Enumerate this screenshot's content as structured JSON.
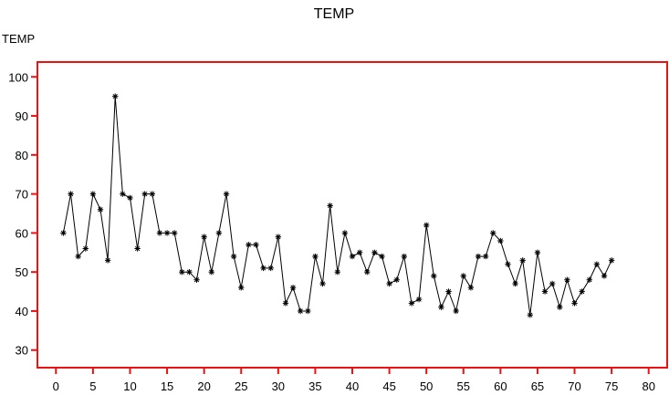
{
  "chart_data": {
    "type": "line",
    "title": "TEMP",
    "ylabel": "TEMP",
    "xlabel": "",
    "xlim": [
      -2.5,
      82.5
    ],
    "ylim": [
      25.5,
      103.8
    ],
    "x_ticks": [
      0,
      5,
      10,
      15,
      20,
      25,
      30,
      35,
      40,
      45,
      50,
      55,
      60,
      65,
      70,
      75,
      80
    ],
    "y_ticks": [
      30,
      40,
      50,
      60,
      70,
      80,
      90,
      100
    ],
    "grid": false,
    "marker": "asterisk",
    "series": [
      {
        "x": [
          1,
          2,
          3,
          4,
          5,
          6,
          7,
          8,
          9,
          10,
          11,
          12,
          13,
          14,
          15,
          16,
          17,
          18,
          19,
          20,
          21,
          22,
          23,
          24,
          25,
          26,
          27,
          28,
          29,
          30,
          31,
          32,
          33,
          34,
          35,
          36,
          37,
          38,
          39,
          40,
          41,
          42,
          43,
          44,
          45,
          46,
          47,
          48,
          49,
          50,
          51,
          52,
          53,
          54,
          55,
          56,
          57,
          58,
          59,
          60,
          61,
          62,
          63,
          64,
          65,
          66,
          67,
          68,
          69,
          70,
          71,
          72,
          73,
          74,
          75
        ],
        "values": [
          60,
          70,
          54,
          56,
          70,
          66,
          53,
          95,
          70,
          69,
          56,
          70,
          70,
          60,
          60,
          60,
          50,
          50,
          48,
          59,
          50,
          60,
          70,
          54,
          46,
          57,
          57,
          51,
          51,
          59,
          42,
          46,
          40,
          40,
          54,
          47,
          67,
          50,
          60,
          54,
          55,
          50,
          55,
          54,
          47,
          48,
          54,
          42,
          43,
          62,
          49,
          41,
          45,
          40,
          49,
          46,
          54,
          54,
          60,
          58,
          52,
          47,
          53,
          39,
          55,
          45,
          47,
          41,
          48,
          42,
          45,
          48,
          52,
          49,
          53
        ]
      }
    ],
    "colors": {
      "frame": "#ee1111",
      "line": "#000000"
    }
  }
}
